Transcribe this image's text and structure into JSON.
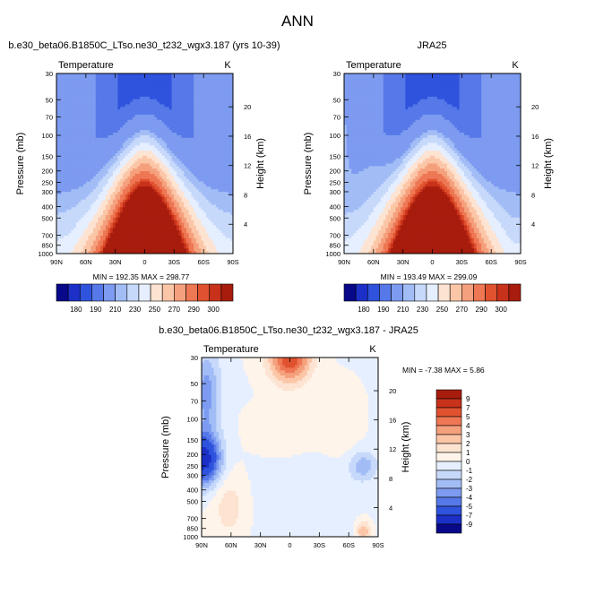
{
  "title": "ANN",
  "palette": {
    "cold": [
      "#08088a",
      "#1c30c8",
      "#2f53dd",
      "#5678e8",
      "#7d9bf0",
      "#a2bdf6",
      "#c7d9fb",
      "#e6efff"
    ],
    "neutral": "#fff4ea",
    "warm": [
      "#fde3d1",
      "#fbc6a7",
      "#f5a07d",
      "#ee7754",
      "#e0522f",
      "#c8321a",
      "#a71c0d",
      "#7c0d05"
    ]
  },
  "chart_data": [
    {
      "type": "heatmap",
      "subtype": "contour",
      "title": "b.e30_beta06.B1850C_LTso.ne30_t232_wgx3.187 (yrs 10-39)",
      "variable": "Temperature",
      "units": "K",
      "xlabel": "",
      "ylabel": "Pressure (mb)",
      "right_label": "Height (km)",
      "x_ticks": [
        "90N",
        "60N",
        "30N",
        "0",
        "30S",
        "60S",
        "90S"
      ],
      "x_values": [
        90,
        60,
        30,
        0,
        -30,
        -60,
        -90
      ],
      "y_ticks": [
        "30",
        "50",
        "70",
        "100",
        "150",
        "200",
        "250",
        "300",
        "400",
        "500",
        "700",
        "850",
        "1000"
      ],
      "y_values": [
        30,
        50,
        70,
        100,
        150,
        200,
        250,
        300,
        400,
        500,
        700,
        850,
        1000
      ],
      "height_ticks": [
        "20",
        "16",
        "12",
        "8",
        "4"
      ],
      "height_values": [
        20,
        16,
        12,
        8,
        4
      ],
      "ylim": [
        30,
        1000
      ],
      "xlim": [
        90,
        -90
      ],
      "min_label": "MIN = 192.35",
      "max_label": "MAX = 298.77",
      "min": 192.35,
      "max": 298.77,
      "colorbar_labels": [
        "180",
        "190",
        "210",
        "230",
        "250",
        "270",
        "290",
        "300"
      ],
      "contour_levels": [
        180,
        190,
        200,
        210,
        220,
        230,
        240,
        250,
        260,
        270,
        280,
        290,
        295,
        300
      ],
      "field": "model"
    },
    {
      "type": "heatmap",
      "subtype": "contour",
      "title": "JRA25",
      "variable": "Temperature",
      "units": "K",
      "xlabel": "",
      "ylabel": "Pressure (mb)",
      "right_label": "Height (km)",
      "x_ticks": [
        "90N",
        "60N",
        "30N",
        "0",
        "30S",
        "60S",
        "90S"
      ],
      "x_values": [
        90,
        60,
        30,
        0,
        -30,
        -60,
        -90
      ],
      "y_ticks": [
        "30",
        "50",
        "70",
        "100",
        "150",
        "200",
        "250",
        "300",
        "400",
        "500",
        "700",
        "850",
        "1000"
      ],
      "y_values": [
        30,
        50,
        70,
        100,
        150,
        200,
        250,
        300,
        400,
        500,
        700,
        850,
        1000
      ],
      "height_ticks": [
        "20",
        "16",
        "12",
        "8",
        "4"
      ],
      "height_values": [
        20,
        16,
        12,
        8,
        4
      ],
      "ylim": [
        30,
        1000
      ],
      "xlim": [
        90,
        -90
      ],
      "min_label": "MIN = 193.49",
      "max_label": "MAX = 299.09",
      "min": 193.49,
      "max": 299.09,
      "colorbar_labels": [
        "180",
        "190",
        "210",
        "230",
        "250",
        "270",
        "290",
        "300"
      ],
      "contour_levels": [
        180,
        190,
        200,
        210,
        220,
        230,
        240,
        250,
        260,
        270,
        280,
        290,
        295,
        300
      ],
      "field": "obs"
    },
    {
      "type": "heatmap",
      "subtype": "contour",
      "title": "b.e30_beta06.B1850C_LTso.ne30_t232_wgx3.187 - JRA25",
      "variable": "Temperature",
      "units": "K",
      "xlabel": "",
      "ylabel": "Pressure (mb)",
      "right_label": "Height (km)",
      "x_ticks": [
        "90N",
        "60N",
        "30N",
        "0",
        "30S",
        "60S",
        "90S"
      ],
      "x_values": [
        90,
        60,
        30,
        0,
        -30,
        -60,
        -90
      ],
      "y_ticks": [
        "30",
        "50",
        "70",
        "100",
        "150",
        "200",
        "250",
        "300",
        "400",
        "500",
        "700",
        "850",
        "1000"
      ],
      "y_values": [
        30,
        50,
        70,
        100,
        150,
        200,
        250,
        300,
        400,
        500,
        700,
        850,
        1000
      ],
      "height_ticks": [
        "20",
        "16",
        "12",
        "8",
        "4"
      ],
      "height_values": [
        20,
        16,
        12,
        8,
        4
      ],
      "ylim": [
        30,
        1000
      ],
      "xlim": [
        90,
        -90
      ],
      "min_label": "MIN = -7.38",
      "max_label": "MAX =  5.86",
      "min": -7.38,
      "max": 5.86,
      "colorbar_labels": [
        "9",
        "7",
        "5",
        "4",
        "3",
        "2",
        "1",
        "0",
        "-1",
        "-2",
        "-3",
        "-4",
        "-5",
        "-7",
        "-9"
      ],
      "contour_levels": [
        -9,
        -7,
        -5,
        -4,
        -3,
        -2,
        -1,
        0,
        1,
        2,
        3,
        4,
        5,
        7,
        9
      ],
      "field": "diff"
    }
  ]
}
